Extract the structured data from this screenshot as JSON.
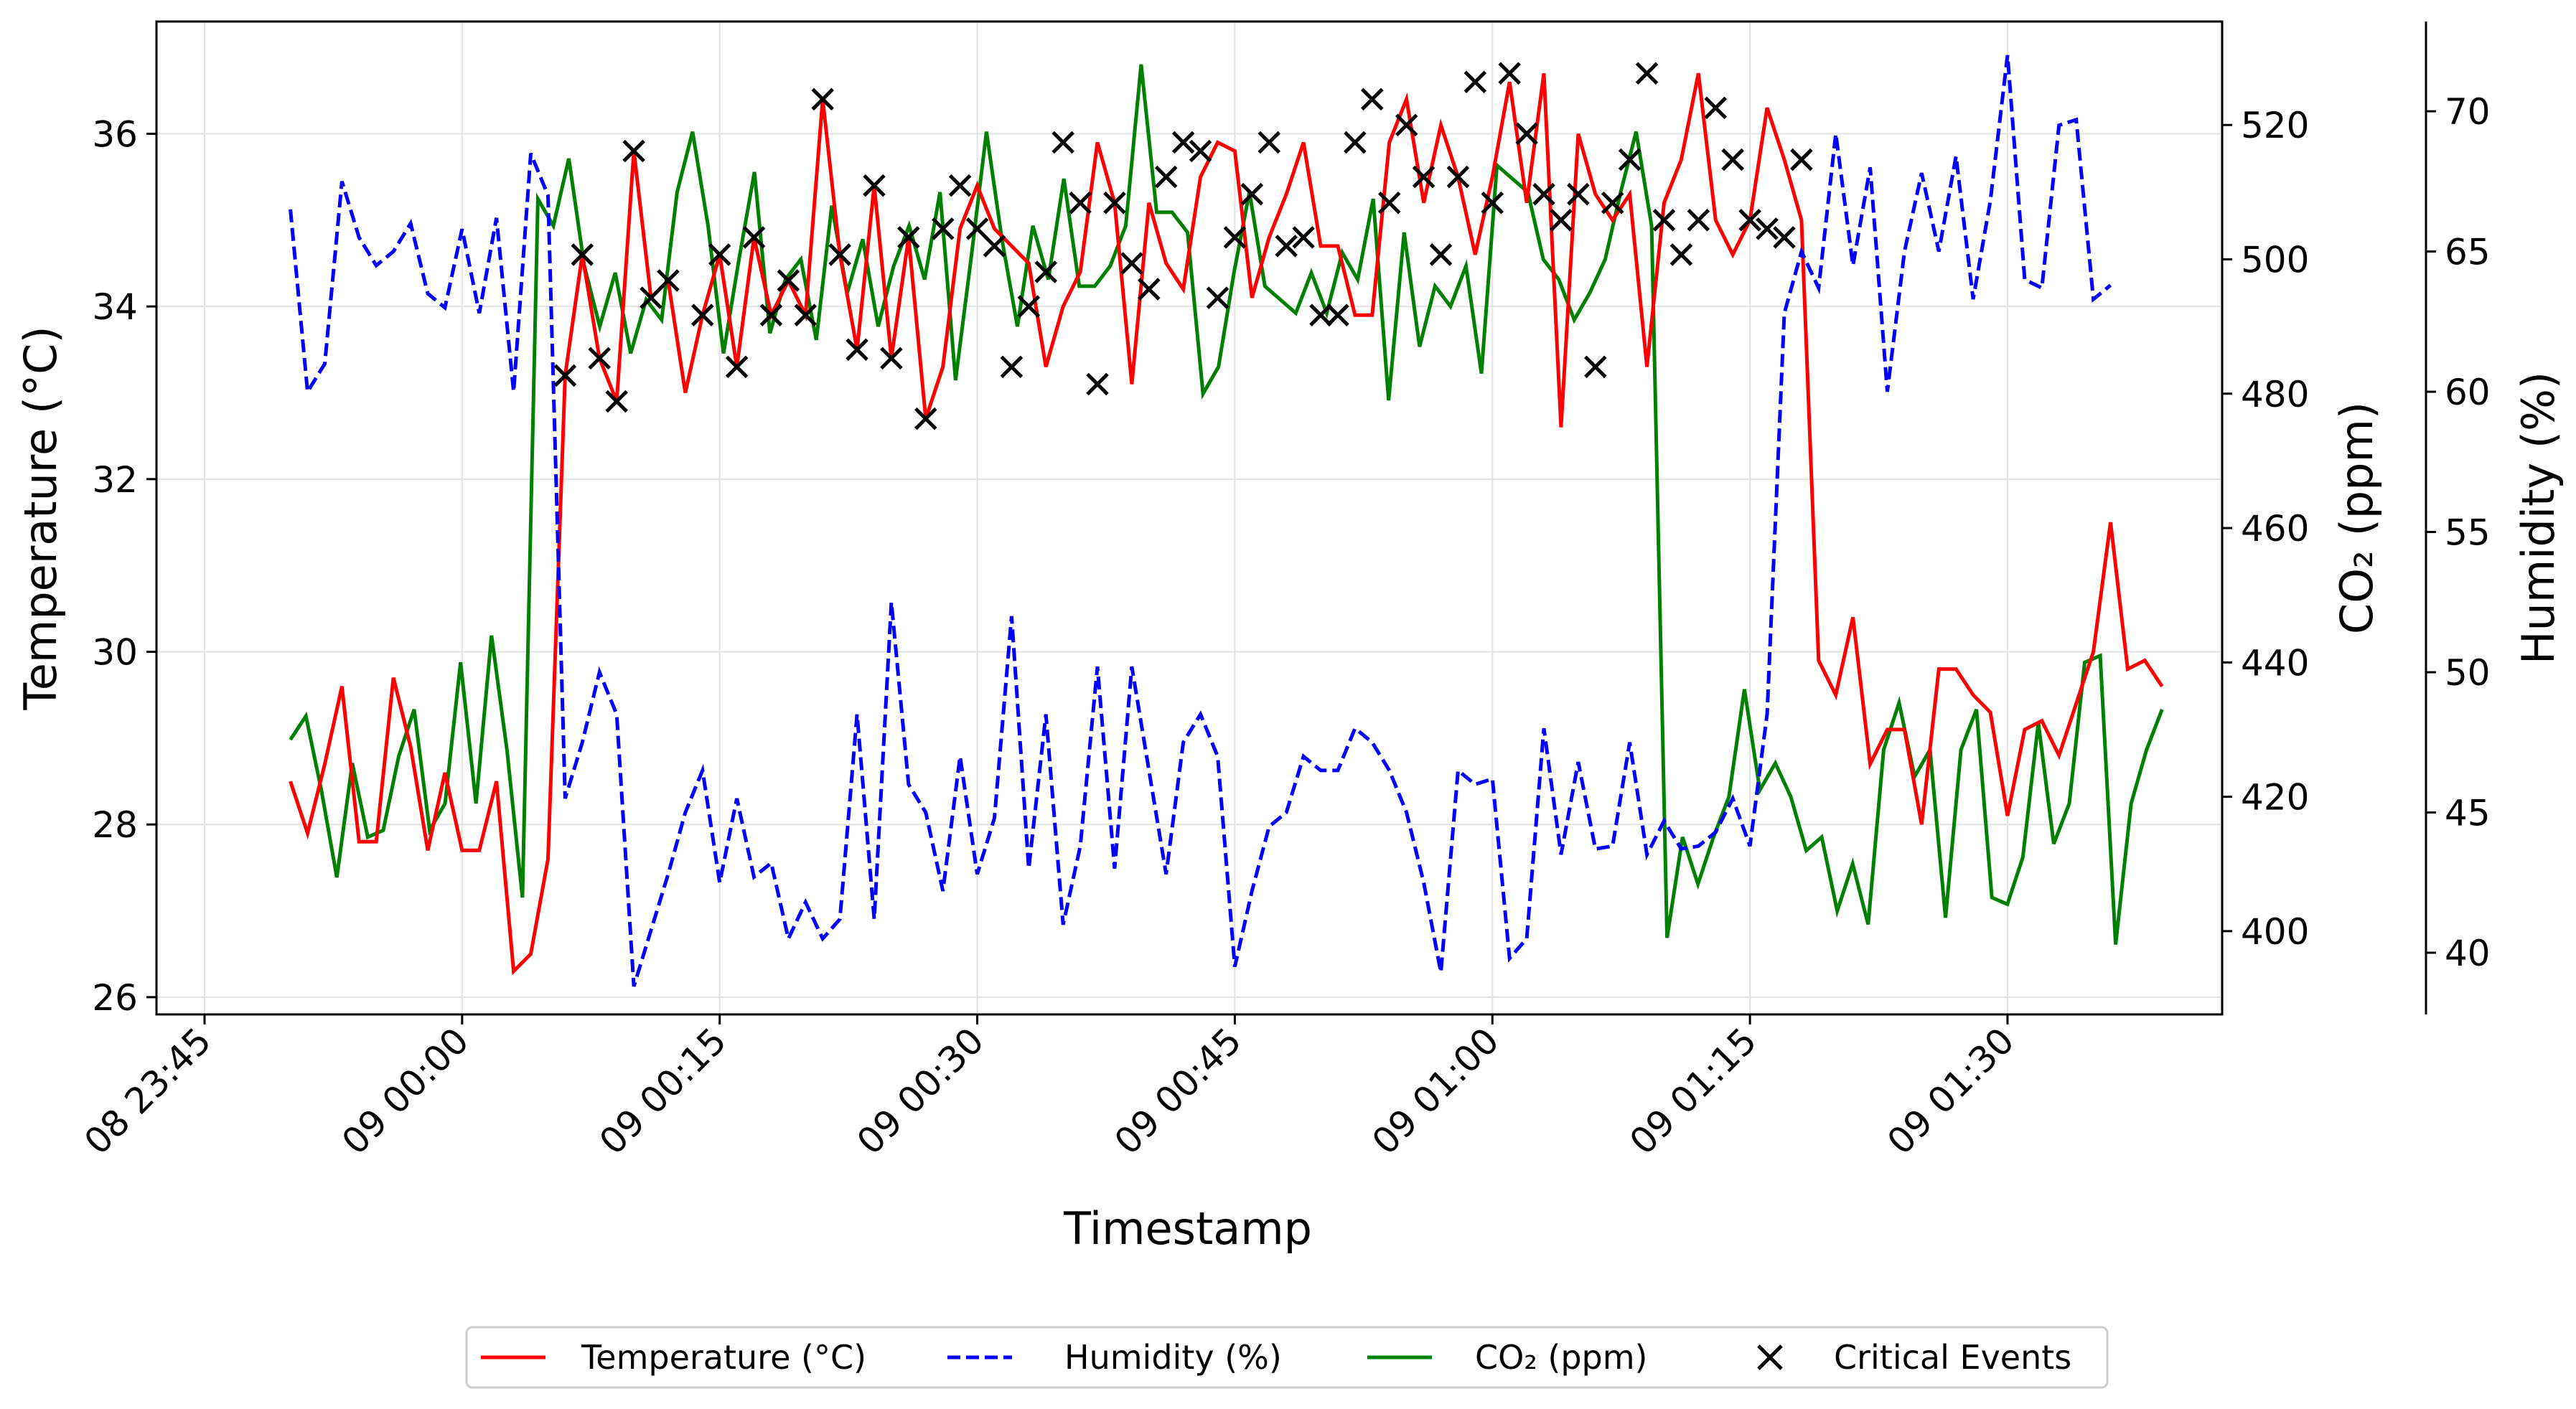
{
  "chart_data": {
    "type": "line",
    "title": "",
    "xlabel": "Timestamp",
    "ylabel_left": "Temperature (°C)",
    "ylabel_right_1": "CO₂ (ppm)",
    "ylabel_right_2": "Humidity (%)",
    "grid": true,
    "legend_position": "bottom-center",
    "x_start": "2023-01-08 23:50",
    "x_step_minutes": 1,
    "x_ticks": [
      {
        "minute": -5,
        "label": "08 23:45"
      },
      {
        "minute": 10,
        "label": "09 00:00"
      },
      {
        "minute": 25,
        "label": "09 00:15"
      },
      {
        "minute": 40,
        "label": "09 00:30"
      },
      {
        "minute": 55,
        "label": "09 00:45"
      },
      {
        "minute": 70,
        "label": "09 01:00"
      },
      {
        "minute": 85,
        "label": "09 01:15"
      },
      {
        "minute": 100,
        "label": "09 01:30"
      }
    ],
    "xlim": [
      -7.8,
      112.5
    ],
    "temperature": {
      "name": "Temperature (°C)",
      "color": "#ff0000",
      "ylim": [
        25.8,
        37.3
      ],
      "ticks": [
        26,
        28,
        30,
        32,
        34,
        36
      ],
      "values": [
        28.5,
        27.9,
        28.7,
        29.6,
        27.8,
        27.8,
        29.7,
        28.9,
        27.7,
        28.6,
        27.7,
        27.7,
        28.5,
        26.3,
        26.5,
        27.6,
        33.2,
        34.6,
        33.4,
        32.9,
        35.8,
        34.1,
        34.3,
        33.0,
        33.9,
        34.6,
        33.3,
        34.8,
        33.9,
        34.3,
        33.9,
        36.4,
        34.6,
        33.5,
        35.4,
        33.4,
        34.8,
        32.7,
        33.3,
        34.9,
        35.4,
        34.9,
        34.7,
        34.5,
        33.3,
        34.0,
        34.4,
        35.9,
        35.2,
        33.1,
        35.2,
        34.5,
        34.2,
        35.5,
        35.9,
        35.8,
        34.1,
        34.8,
        35.3,
        35.9,
        34.7,
        34.7,
        33.9,
        33.9,
        35.9,
        36.4,
        35.2,
        36.1,
        35.5,
        34.6,
        35.5,
        36.6,
        35.2,
        36.7,
        32.6,
        36.0,
        35.3,
        35.0,
        35.3,
        33.3,
        35.2,
        35.7,
        36.7,
        35.0,
        34.6,
        35.0,
        36.3,
        35.7,
        35.0,
        29.9,
        29.5,
        30.4,
        28.7,
        29.1,
        29.1,
        28.0,
        29.8,
        29.8,
        29.5,
        29.3,
        28.1,
        29.1,
        29.2,
        28.8,
        29.4,
        30.0,
        31.5,
        29.8,
        29.9,
        29.6
      ]
    },
    "humidity": {
      "name": "Humidity (%)",
      "color": "#0000ff",
      "ylim": [
        37.8,
        73.2
      ],
      "ticks": [
        40,
        45,
        50,
        55,
        60,
        65,
        70
      ],
      "values": [
        66.5,
        60.0,
        61.0,
        67.5,
        65.5,
        64.5,
        65.0,
        66.0,
        63.5,
        63.0,
        65.8,
        62.8,
        66.2,
        60.0,
        68.5,
        67.0,
        45.5,
        47.5,
        50.0,
        48.5,
        38.8,
        40.8,
        42.8,
        45.0,
        46.5,
        42.5,
        45.5,
        42.7,
        43.2,
        40.5,
        41.8,
        40.5,
        41.2,
        48.5,
        41.2,
        52.5,
        46.0,
        45.0,
        42.2,
        47.0,
        42.8,
        44.8,
        52.0,
        43.0,
        48.5,
        41.0,
        43.8,
        50.2,
        43.0,
        50.2,
        46.5,
        42.8,
        47.5,
        48.5,
        47.0,
        39.5,
        42.2,
        44.5,
        45.0,
        47.0,
        46.5,
        46.5,
        48.0,
        47.5,
        46.5,
        45.0,
        42.5,
        39.3,
        46.5,
        46.0,
        46.2,
        39.8,
        40.5,
        48.0,
        43.5,
        46.8,
        43.7,
        43.8,
        47.5,
        43.5,
        44.7,
        43.7,
        43.8,
        44.3,
        45.5,
        43.8,
        48.5,
        62.8,
        65.0,
        63.7,
        69.2,
        64.5,
        68.0,
        60.0,
        65.0,
        67.8,
        65.0,
        68.4,
        63.3,
        66.8,
        72.0,
        64.0,
        63.7,
        69.5,
        69.7,
        63.3,
        63.8
      ]
    },
    "co2": {
      "name": "CO₂ (ppm)",
      "color": "#008000",
      "ylim": [
        387.6,
        535.4
      ],
      "ticks": [
        400,
        420,
        440,
        460,
        480,
        500,
        520
      ],
      "values": [
        428.5,
        432,
        421,
        408,
        425,
        414,
        415,
        426,
        433,
        415,
        419,
        440,
        419,
        444,
        427,
        405,
        509,
        505,
        515,
        499,
        490,
        498,
        486,
        494,
        491,
        510,
        519,
        505,
        486,
        500,
        513,
        489,
        497,
        500,
        488,
        508,
        495,
        503,
        490,
        499,
        505,
        497,
        510,
        482,
        500,
        519,
        503,
        490,
        505,
        497,
        512,
        496,
        496,
        499,
        505,
        529,
        507,
        507,
        504,
        480,
        484,
        498,
        510,
        496,
        494,
        492,
        498,
        492,
        501,
        497,
        509,
        479,
        504,
        487,
        496,
        493,
        499,
        483,
        514,
        512,
        510,
        500,
        497,
        491,
        495,
        500,
        510,
        519,
        505,
        399,
        414,
        407,
        414,
        420,
        436,
        421,
        425,
        420,
        412,
        414,
        403,
        410,
        401,
        427,
        434,
        423,
        427,
        402,
        427,
        433,
        405,
        404,
        411,
        431,
        413,
        419,
        440,
        441,
        398,
        419,
        427,
        433
      ]
    },
    "critical_events": {
      "name": "Critical Events",
      "color": "#000000",
      "minutes": [
        16,
        17,
        18,
        19,
        20,
        21,
        22,
        24,
        25,
        26,
        27,
        28,
        29,
        30,
        31,
        32,
        33,
        34,
        35,
        36,
        37,
        38,
        39,
        40,
        41,
        42,
        43,
        44,
        45,
        46,
        47,
        48,
        49,
        50,
        51,
        52,
        53,
        54,
        55,
        56,
        57,
        58,
        59,
        60,
        61,
        62,
        63,
        64,
        65,
        66,
        67,
        68,
        69,
        70,
        71,
        72,
        73,
        74,
        75,
        76,
        77,
        78,
        79,
        80,
        81,
        82,
        83,
        84,
        85,
        86,
        87,
        88
      ],
      "values": [
        33.2,
        34.6,
        33.4,
        32.9,
        35.8,
        34.1,
        34.3,
        33.9,
        34.6,
        33.3,
        34.8,
        33.9,
        34.3,
        33.9,
        36.4,
        34.6,
        33.5,
        35.4,
        33.4,
        34.8,
        32.7,
        34.9,
        35.4,
        34.9,
        34.7,
        33.3,
        34.0,
        34.4,
        35.9,
        35.2,
        33.1,
        35.2,
        34.5,
        34.2,
        35.5,
        35.9,
        35.8,
        34.1,
        34.8,
        35.3,
        35.9,
        34.7,
        34.8,
        33.9,
        33.9,
        35.9,
        36.4,
        35.2,
        36.1,
        35.5,
        34.6,
        35.5,
        36.6,
        35.2,
        36.7,
        36.0,
        35.3,
        35.0,
        35.3,
        33.3,
        35.2,
        35.7,
        36.7,
        35.0,
        34.6,
        35.0,
        36.3,
        35.7,
        35.0,
        34.9,
        34.8,
        35.7
      ]
    },
    "legend": [
      {
        "label": "Temperature (°C)",
        "style": "solid",
        "color": "#ff0000"
      },
      {
        "label": "Humidity (%)",
        "style": "dashed",
        "color": "#0000ff"
      },
      {
        "label": "CO₂ (ppm)",
        "style": "solid",
        "color": "#008000"
      },
      {
        "label": "Critical Events",
        "style": "marker-x",
        "color": "#000000"
      }
    ]
  }
}
